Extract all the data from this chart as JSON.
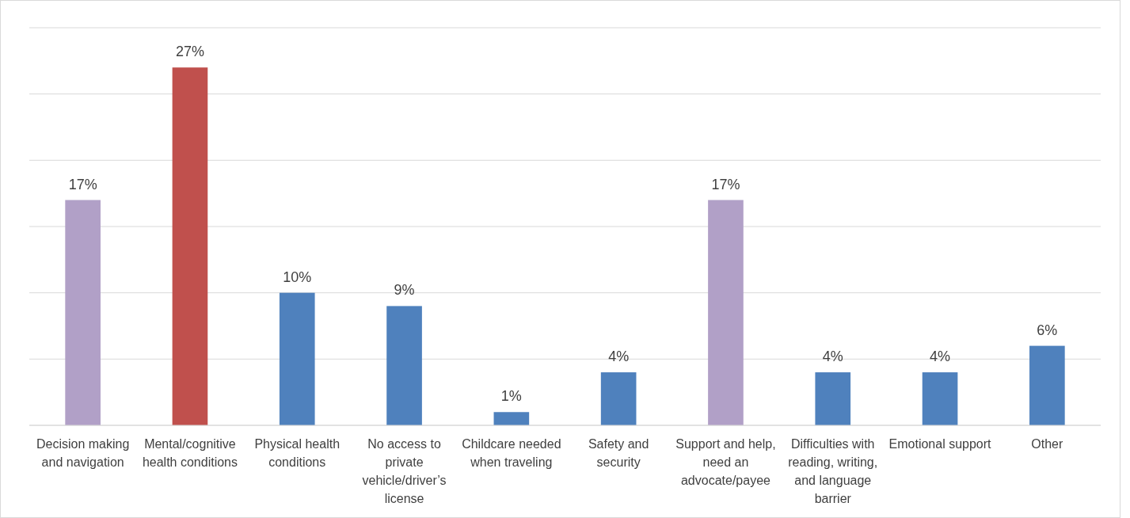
{
  "chart_data": {
    "type": "bar",
    "categories": [
      "Decision making and navigation",
      "Mental/cognitive health conditions",
      "Physical health conditions",
      "No access to private vehicle/driver’s license",
      "Childcare needed when traveling",
      "Safety and security",
      "Support and help, need an advocate/payee",
      "Difficulties with reading, writing, and language barrier",
      "Emotional support",
      "Other"
    ],
    "values": [
      17,
      27,
      10,
      9,
      1,
      4,
      17,
      4,
      4,
      6
    ],
    "colors": [
      "#b1a0c7",
      "#c0504d",
      "#4f81bd",
      "#4f81bd",
      "#4f81bd",
      "#4f81bd",
      "#b1a0c7",
      "#4f81bd",
      "#4f81bd",
      "#4f81bd"
    ],
    "value_labels": [
      "17%",
      "27%",
      "10%",
      "9%",
      "1%",
      "4%",
      "17%",
      "4%",
      "4%",
      "6%"
    ],
    "ylim": [
      0,
      30
    ],
    "yticks": [
      {
        "value": 0,
        "label": null
      },
      {
        "value": 5,
        "label": null
      },
      {
        "value": 10,
        "label": null
      },
      {
        "value": 15,
        "label": null
      },
      {
        "value": 20,
        "label": null
      },
      {
        "value": 25,
        "label": null
      },
      {
        "value": 30,
        "label": null
      }
    ],
    "grid": "y",
    "tick_labels": "x"
  }
}
